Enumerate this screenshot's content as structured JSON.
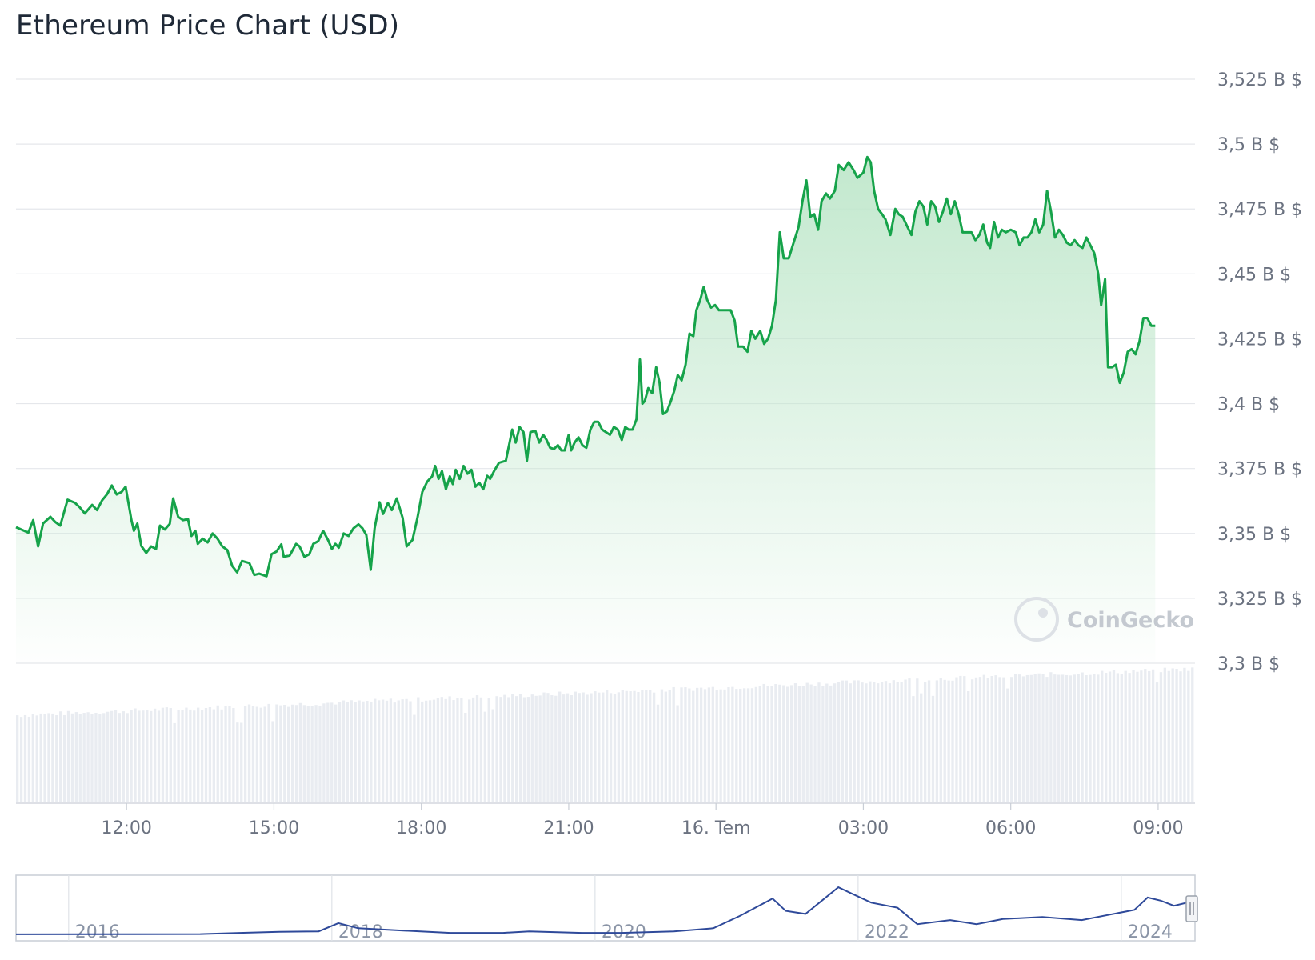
{
  "title": "Ethereum Price Chart (USD)",
  "watermark": "CoinGecko",
  "colors": {
    "line": "#16a34a",
    "area_top": "#bfe7cb",
    "grid": "#e5e7eb",
    "volume": "#e9ecf1",
    "navigator_line": "#2f4a9a"
  },
  "chart_data": [
    {
      "type": "area",
      "name": "price",
      "xlabel": "",
      "ylabel": "",
      "ylim": [
        3.3,
        3.525
      ],
      "y_ticks": [
        {
          "value": 3.525,
          "label": "3,525 B $"
        },
        {
          "value": 3.5,
          "label": "3,5 B $"
        },
        {
          "value": 3.475,
          "label": "3,475 B $"
        },
        {
          "value": 3.45,
          "label": "3,45 B $"
        },
        {
          "value": 3.425,
          "label": "3,425 B $"
        },
        {
          "value": 3.4,
          "label": "3,4 B $"
        },
        {
          "value": 3.375,
          "label": "3,375 B $"
        },
        {
          "value": 3.35,
          "label": "3,35 B $"
        },
        {
          "value": 3.325,
          "label": "3,325 B $"
        },
        {
          "value": 3.3,
          "label": "3,3 B $"
        }
      ],
      "xlim": [
        9.75,
        33.75
      ],
      "x_ticks": [
        {
          "value": 12,
          "label": "12:00"
        },
        {
          "value": 15,
          "label": "15:00"
        },
        {
          "value": 18,
          "label": "18:00"
        },
        {
          "value": 21,
          "label": "21:00"
        },
        {
          "value": 24,
          "label": "16. Tem"
        },
        {
          "value": 27,
          "label": "03:00"
        },
        {
          "value": 30,
          "label": "06:00"
        },
        {
          "value": 33,
          "label": "09:00"
        }
      ],
      "grid": true,
      "points": [
        [
          9.75,
          3.3524
        ],
        [
          10.0,
          3.3503
        ],
        [
          10.1,
          3.3551
        ],
        [
          10.2,
          3.345
        ],
        [
          10.3,
          3.3538
        ],
        [
          10.45,
          3.3564
        ],
        [
          10.55,
          3.3544
        ],
        [
          10.65,
          3.353
        ],
        [
          10.8,
          3.363
        ],
        [
          10.95,
          3.3618
        ],
        [
          11.05,
          3.36
        ],
        [
          11.15,
          3.3577
        ],
        [
          11.3,
          3.361
        ],
        [
          11.4,
          3.359
        ],
        [
          11.5,
          3.3627
        ],
        [
          11.6,
          3.365
        ],
        [
          11.7,
          3.3685
        ],
        [
          11.8,
          3.365
        ],
        [
          11.9,
          3.366
        ],
        [
          11.98,
          3.368
        ],
        [
          12.1,
          3.3551
        ],
        [
          12.15,
          3.351
        ],
        [
          12.22,
          3.3538
        ],
        [
          12.3,
          3.3452
        ],
        [
          12.4,
          3.3425
        ],
        [
          12.5,
          3.345
        ],
        [
          12.6,
          3.344
        ],
        [
          12.68,
          3.353
        ],
        [
          12.78,
          3.3515
        ],
        [
          12.88,
          3.3537
        ],
        [
          12.95,
          3.3635
        ],
        [
          13.05,
          3.3564
        ],
        [
          13.15,
          3.3551
        ],
        [
          13.25,
          3.3555
        ],
        [
          13.32,
          3.349
        ],
        [
          13.4,
          3.351
        ],
        [
          13.45,
          3.346
        ],
        [
          13.55,
          3.348
        ],
        [
          13.65,
          3.3465
        ],
        [
          13.75,
          3.35
        ],
        [
          13.85,
          3.348
        ],
        [
          13.95,
          3.345
        ],
        [
          14.05,
          3.3436
        ],
        [
          14.15,
          3.3375
        ],
        [
          14.25,
          3.335
        ],
        [
          14.35,
          3.3394
        ],
        [
          14.5,
          3.3386
        ],
        [
          14.6,
          3.334
        ],
        [
          14.7,
          3.3345
        ],
        [
          14.85,
          3.3335
        ],
        [
          14.95,
          3.342
        ],
        [
          15.05,
          3.343
        ],
        [
          15.15,
          3.3458
        ],
        [
          15.2,
          3.341
        ],
        [
          15.32,
          3.3415
        ],
        [
          15.45,
          3.346
        ],
        [
          15.52,
          3.345
        ],
        [
          15.62,
          3.341
        ],
        [
          15.72,
          3.342
        ],
        [
          15.8,
          3.346
        ],
        [
          15.9,
          3.347
        ],
        [
          16.0,
          3.351
        ],
        [
          16.1,
          3.3475
        ],
        [
          16.18,
          3.344
        ],
        [
          16.25,
          3.346
        ],
        [
          16.32,
          3.3445
        ],
        [
          16.42,
          3.35
        ],
        [
          16.52,
          3.349
        ],
        [
          16.62,
          3.352
        ],
        [
          16.72,
          3.3535
        ],
        [
          16.8,
          3.352
        ],
        [
          16.88,
          3.3494
        ],
        [
          16.97,
          3.336
        ],
        [
          17.05,
          3.352
        ],
        [
          17.15,
          3.362
        ],
        [
          17.22,
          3.3575
        ],
        [
          17.32,
          3.3617
        ],
        [
          17.4,
          3.359
        ],
        [
          17.5,
          3.3635
        ],
        [
          17.62,
          3.356
        ],
        [
          17.7,
          3.345
        ],
        [
          17.82,
          3.3475
        ],
        [
          17.92,
          3.356
        ],
        [
          18.02,
          3.366
        ],
        [
          18.12,
          3.37
        ],
        [
          18.22,
          3.372
        ],
        [
          18.28,
          3.376
        ],
        [
          18.35,
          3.371
        ],
        [
          18.42,
          3.374
        ],
        [
          18.5,
          3.367
        ],
        [
          18.58,
          3.372
        ],
        [
          18.64,
          3.369
        ],
        [
          18.7,
          3.3745
        ],
        [
          18.78,
          3.371
        ],
        [
          18.86,
          3.376
        ],
        [
          18.94,
          3.373
        ],
        [
          19.02,
          3.3745
        ],
        [
          19.1,
          3.368
        ],
        [
          19.18,
          3.3695
        ],
        [
          19.26,
          3.367
        ],
        [
          19.34,
          3.3722
        ],
        [
          19.4,
          3.371
        ],
        [
          19.48,
          3.374
        ],
        [
          19.58,
          3.3772
        ],
        [
          19.72,
          3.378
        ],
        [
          19.85,
          3.39
        ],
        [
          19.92,
          3.385
        ],
        [
          20.0,
          3.391
        ],
        [
          20.08,
          3.389
        ],
        [
          20.15,
          3.378
        ],
        [
          20.22,
          3.389
        ],
        [
          20.32,
          3.3895
        ],
        [
          20.4,
          3.385
        ],
        [
          20.48,
          3.388
        ],
        [
          20.55,
          3.386
        ],
        [
          20.62,
          3.383
        ],
        [
          20.7,
          3.3825
        ],
        [
          20.78,
          3.384
        ],
        [
          20.85,
          3.382
        ],
        [
          20.92,
          3.382
        ],
        [
          21.0,
          3.388
        ],
        [
          21.05,
          3.382
        ],
        [
          21.12,
          3.385
        ],
        [
          21.2,
          3.387
        ],
        [
          21.28,
          3.384
        ],
        [
          21.36,
          3.383
        ],
        [
          21.44,
          3.39
        ],
        [
          21.52,
          3.393
        ],
        [
          21.6,
          3.393
        ],
        [
          21.68,
          3.39
        ],
        [
          21.76,
          3.389
        ],
        [
          21.84,
          3.388
        ],
        [
          21.92,
          3.391
        ],
        [
          22.0,
          3.39
        ],
        [
          22.08,
          3.386
        ],
        [
          22.15,
          3.391
        ],
        [
          22.22,
          3.39
        ],
        [
          22.3,
          3.39
        ],
        [
          22.38,
          3.394
        ],
        [
          22.45,
          3.417
        ],
        [
          22.5,
          3.4
        ],
        [
          22.55,
          3.401
        ],
        [
          22.62,
          3.406
        ],
        [
          22.7,
          3.404
        ],
        [
          22.78,
          3.414
        ],
        [
          22.85,
          3.408
        ],
        [
          22.92,
          3.396
        ],
        [
          23.0,
          3.397
        ],
        [
          23.08,
          3.401
        ],
        [
          23.15,
          3.405
        ],
        [
          23.22,
          3.411
        ],
        [
          23.3,
          3.409
        ],
        [
          23.38,
          3.415
        ],
        [
          23.46,
          3.427
        ],
        [
          23.54,
          3.426
        ],
        [
          23.6,
          3.436
        ],
        [
          23.68,
          3.44
        ],
        [
          23.75,
          3.445
        ],
        [
          23.82,
          3.44
        ],
        [
          23.9,
          3.437
        ],
        [
          23.98,
          3.438
        ],
        [
          24.06,
          3.436
        ],
        [
          24.2,
          3.436
        ],
        [
          24.3,
          3.436
        ],
        [
          24.38,
          3.432
        ],
        [
          24.45,
          3.422
        ],
        [
          24.55,
          3.422
        ],
        [
          24.64,
          3.42
        ],
        [
          24.72,
          3.428
        ],
        [
          24.8,
          3.425
        ],
        [
          24.9,
          3.428
        ],
        [
          24.98,
          3.423
        ],
        [
          25.06,
          3.425
        ],
        [
          25.14,
          3.43
        ],
        [
          25.22,
          3.44
        ],
        [
          25.3,
          3.466
        ],
        [
          25.38,
          3.456
        ],
        [
          25.48,
          3.456
        ],
        [
          25.58,
          3.462
        ],
        [
          25.68,
          3.468
        ],
        [
          25.76,
          3.478
        ],
        [
          25.84,
          3.486
        ],
        [
          25.92,
          3.472
        ],
        [
          26.0,
          3.473
        ],
        [
          26.08,
          3.467
        ],
        [
          26.15,
          3.478
        ],
        [
          26.24,
          3.481
        ],
        [
          26.32,
          3.479
        ],
        [
          26.42,
          3.482
        ],
        [
          26.5,
          3.492
        ],
        [
          26.6,
          3.49
        ],
        [
          26.7,
          3.493
        ],
        [
          26.8,
          3.49
        ],
        [
          26.88,
          3.487
        ],
        [
          27.0,
          3.489
        ],
        [
          27.08,
          3.495
        ],
        [
          27.15,
          3.493
        ],
        [
          27.22,
          3.482
        ],
        [
          27.3,
          3.475
        ],
        [
          27.38,
          3.473
        ],
        [
          27.45,
          3.471
        ],
        [
          27.55,
          3.465
        ],
        [
          27.65,
          3.475
        ],
        [
          27.72,
          3.473
        ],
        [
          27.8,
          3.472
        ],
        [
          27.9,
          3.468
        ],
        [
          27.98,
          3.465
        ],
        [
          28.06,
          3.474
        ],
        [
          28.14,
          3.478
        ],
        [
          28.22,
          3.476
        ],
        [
          28.3,
          3.469
        ],
        [
          28.38,
          3.478
        ],
        [
          28.46,
          3.476
        ],
        [
          28.54,
          3.47
        ],
        [
          28.62,
          3.474
        ],
        [
          28.7,
          3.479
        ],
        [
          28.78,
          3.473
        ],
        [
          28.86,
          3.478
        ],
        [
          28.94,
          3.473
        ],
        [
          29.02,
          3.466
        ],
        [
          29.1,
          3.466
        ],
        [
          29.2,
          3.466
        ],
        [
          29.28,
          3.463
        ],
        [
          29.36,
          3.465
        ],
        [
          29.44,
          3.469
        ],
        [
          29.52,
          3.462
        ],
        [
          29.58,
          3.46
        ],
        [
          29.66,
          3.47
        ],
        [
          29.74,
          3.464
        ],
        [
          29.82,
          3.467
        ],
        [
          29.9,
          3.466
        ],
        [
          30.0,
          3.467
        ],
        [
          30.1,
          3.466
        ],
        [
          30.18,
          3.461
        ],
        [
          30.26,
          3.464
        ],
        [
          30.34,
          3.464
        ],
        [
          30.42,
          3.466
        ],
        [
          30.5,
          3.471
        ],
        [
          30.58,
          3.466
        ],
        [
          30.66,
          3.469
        ],
        [
          30.74,
          3.482
        ],
        [
          30.82,
          3.474
        ],
        [
          30.9,
          3.464
        ],
        [
          30.98,
          3.467
        ],
        [
          31.06,
          3.465
        ],
        [
          31.14,
          3.462
        ],
        [
          31.22,
          3.461
        ],
        [
          31.3,
          3.463
        ],
        [
          31.38,
          3.461
        ],
        [
          31.46,
          3.46
        ],
        [
          31.54,
          3.464
        ],
        [
          31.62,
          3.461
        ],
        [
          31.7,
          3.458
        ],
        [
          31.78,
          3.45
        ],
        [
          31.84,
          3.438
        ],
        [
          31.92,
          3.448
        ],
        [
          31.98,
          3.414
        ],
        [
          32.06,
          3.414
        ],
        [
          32.14,
          3.415
        ],
        [
          32.22,
          3.408
        ],
        [
          32.3,
          3.412
        ],
        [
          32.38,
          3.42
        ],
        [
          32.46,
          3.421
        ],
        [
          32.54,
          3.419
        ],
        [
          32.62,
          3.424
        ],
        [
          32.7,
          3.433
        ],
        [
          32.78,
          3.433
        ],
        [
          32.86,
          3.43
        ],
        [
          32.94,
          3.43
        ]
      ]
    },
    {
      "type": "bar",
      "name": "volume",
      "note_hidden": false
    },
    {
      "type": "line",
      "name": "navigator",
      "x_ticks": [
        {
          "value": 2016,
          "label": "2016"
        },
        {
          "value": 2018,
          "label": "2018"
        },
        {
          "value": 2020,
          "label": "2020"
        },
        {
          "value": 2022,
          "label": "2022"
        },
        {
          "value": 2024,
          "label": "2024"
        }
      ],
      "xlim": [
        2015.6,
        2024.56
      ]
    }
  ]
}
